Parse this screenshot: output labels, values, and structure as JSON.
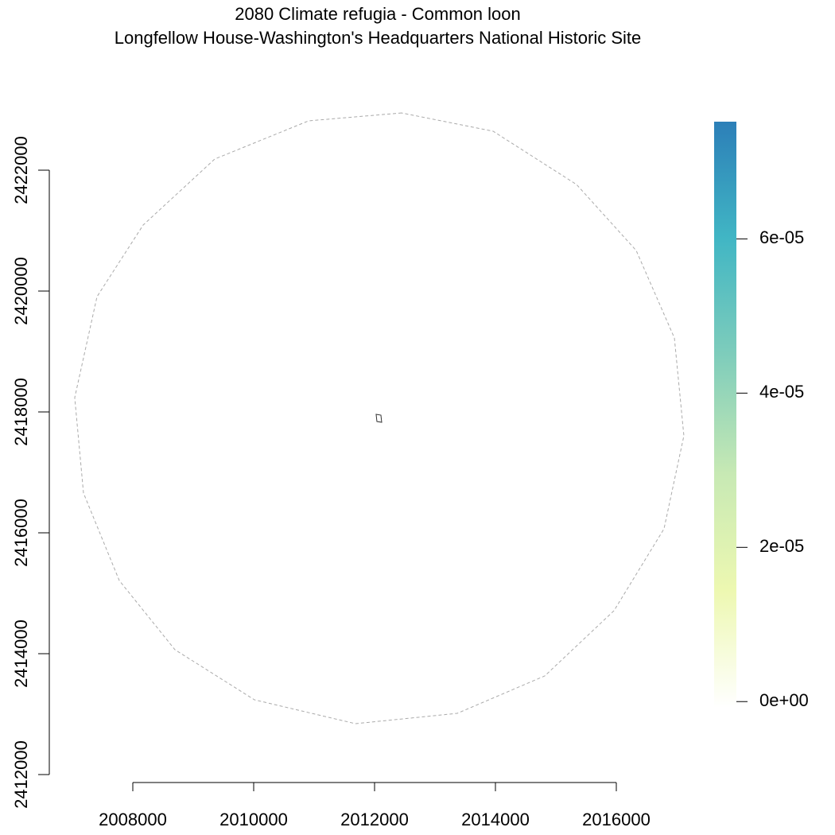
{
  "chart_data": {
    "type": "map",
    "title": "2080 Climate refugia - Common loon",
    "subtitle": "Longfellow House-Washington's Headquarters National Historic Site",
    "xlim": [
      2006600,
      2017000
    ],
    "ylim": [
      2412000,
      2423000
    ],
    "xticks": [
      2008000,
      2010000,
      2012000,
      2014000,
      2016000
    ],
    "yticks": [
      2412000,
      2414000,
      2416000,
      2418000,
      2420000,
      2422000
    ],
    "layers": [
      {
        "color": "#aaaaaa",
        "dashed": true,
        "x": [
          2012447,
          2010908,
          2009355,
          2008171,
          2007408,
          2007039,
          2007184,
          2007776,
          2008697,
          2010013,
          2011684,
          2013368,
          2014816,
          2015961,
          2016789,
          2017118,
          2016961,
          2016329,
          2015342,
          2013961
        ],
        "y": [
          2422947,
          2422816,
          2422184,
          2421092,
          2419908,
          2418237,
          2416658,
          2415211,
          2414066,
          2413237,
          2412842,
          2413013,
          2413632,
          2414711,
          2416066,
          2417605,
          2419224,
          2420671,
          2421763,
          2422645
        ]
      },
      {
        "color": "#333333",
        "dashed": false,
        "x": [
          2012026,
          2012105,
          2012118,
          2012039
        ],
        "y": [
          2417961,
          2417947,
          2417829,
          2417842
        ]
      }
    ],
    "colorbar": {
      "zlim": [
        -8e-07,
        7.52e-05
      ],
      "palette": [
        "#ffffff",
        "#edf8b1",
        "#c7e9b4",
        "#7fcdbb",
        "#41b6c4",
        "#2c7fb8"
      ],
      "ticks": [
        {
          "value": 0,
          "label": "0e+00"
        },
        {
          "value": 2e-05,
          "label": "2e-05"
        },
        {
          "value": 4e-05,
          "label": "4e-05"
        },
        {
          "value": 6e-05,
          "label": "6e-05"
        }
      ]
    }
  }
}
